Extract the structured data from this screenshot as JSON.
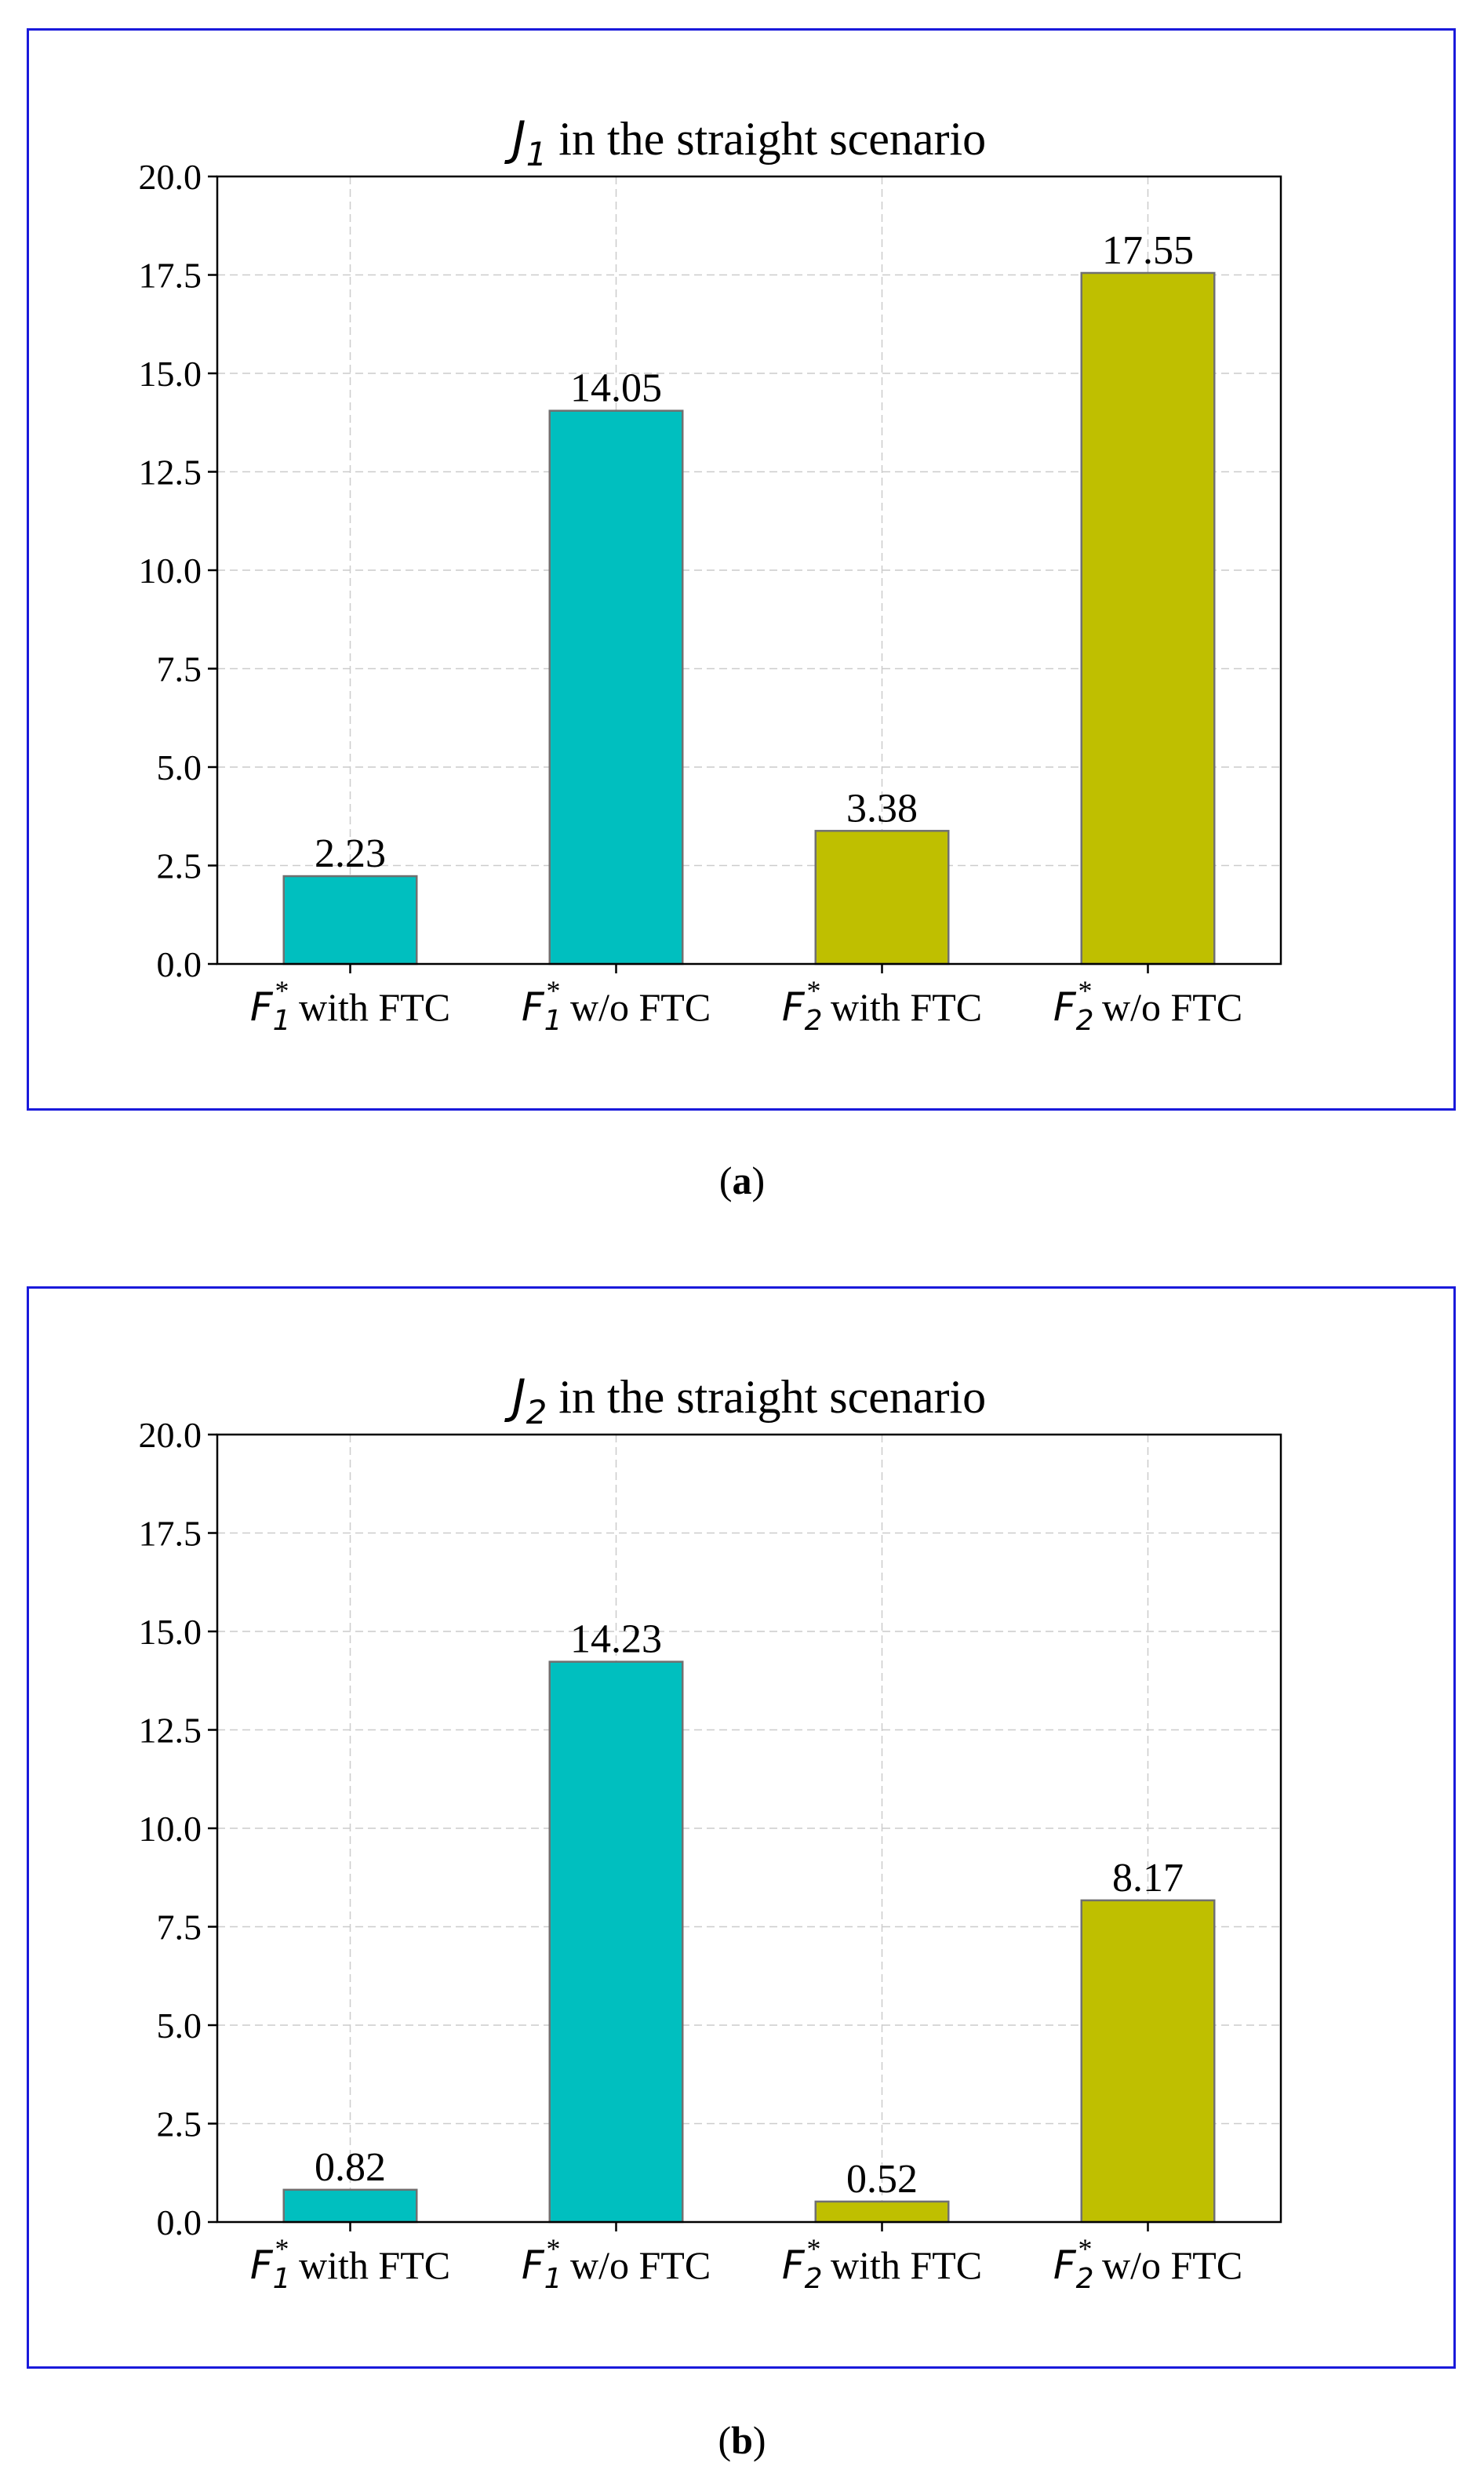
{
  "chart_data": [
    {
      "type": "bar",
      "title_symbol": "J",
      "title_subscript": "1",
      "title_text": " in the straight scenario",
      "categories": [
        {
          "sym": "F",
          "sub": "1",
          "sup": "*",
          "text": " with FTC"
        },
        {
          "sym": "F",
          "sub": "1",
          "sup": "*",
          "text": " w/o FTC"
        },
        {
          "sym": "F",
          "sub": "2",
          "sup": "*",
          "text": " with FTC"
        },
        {
          "sym": "F",
          "sub": "2",
          "sup": "*",
          "text": " w/o FTC"
        }
      ],
      "values": [
        2.23,
        14.05,
        3.38,
        17.55
      ],
      "value_labels": [
        "2.23",
        "14.05",
        "3.38",
        "17.55"
      ],
      "colors": [
        "#00bfbf",
        "#00bfbf",
        "#bfbf00",
        "#bfbf00"
      ],
      "ylim": [
        0,
        20
      ],
      "yticks": [
        "0.0",
        "2.5",
        "5.0",
        "7.5",
        "10.0",
        "12.5",
        "15.0",
        "17.5",
        "20.0"
      ],
      "grid": true,
      "xlabel": "",
      "ylabel": ""
    },
    {
      "type": "bar",
      "title_symbol": "J",
      "title_subscript": "2",
      "title_text": " in the straight scenario",
      "categories": [
        {
          "sym": "F",
          "sub": "1",
          "sup": "*",
          "text": " with FTC"
        },
        {
          "sym": "F",
          "sub": "1",
          "sup": "*",
          "text": " w/o FTC"
        },
        {
          "sym": "F",
          "sub": "2",
          "sup": "*",
          "text": " with FTC"
        },
        {
          "sym": "F",
          "sub": "2",
          "sup": "*",
          "text": " w/o FTC"
        }
      ],
      "values": [
        0.82,
        14.23,
        0.52,
        8.17
      ],
      "value_labels": [
        "0.82",
        "14.23",
        "0.52",
        "8.17"
      ],
      "colors": [
        "#00bfbf",
        "#00bfbf",
        "#bfbf00",
        "#bfbf00"
      ],
      "ylim": [
        0,
        20
      ],
      "yticks": [
        "0.0",
        "2.5",
        "5.0",
        "7.5",
        "10.0",
        "12.5",
        "15.0",
        "17.5",
        "20.0"
      ],
      "grid": true,
      "xlabel": "",
      "ylabel": ""
    }
  ],
  "captions": [
    {
      "open": "(",
      "letter": "a",
      "close": ")"
    },
    {
      "open": "(",
      "letter": "b",
      "close": ")"
    }
  ]
}
